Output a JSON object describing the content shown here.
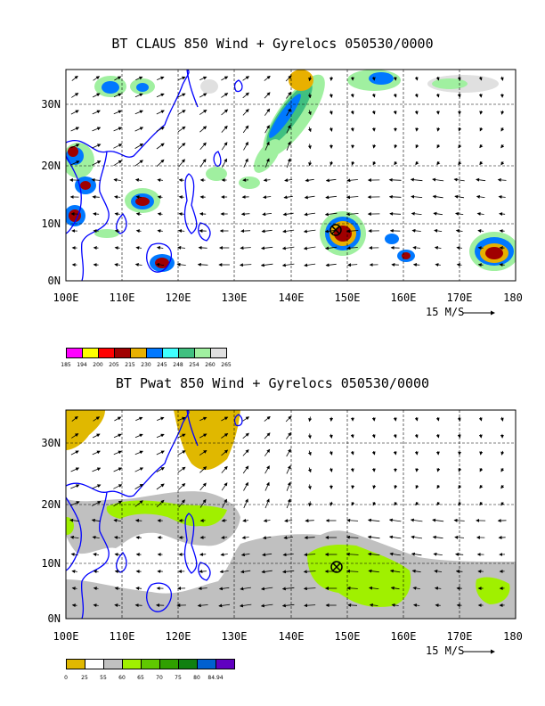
{
  "panels": [
    {
      "title": "BT CLAUS 850 Wind + Gyrelocs 050530/0000",
      "scale_label": "15 M/S",
      "colorbar": {
        "colors": [
          "#ff00ff",
          "#ffff00",
          "#ff0000",
          "#a00000",
          "#e8b000",
          "#0078ff",
          "#40ffff",
          "#40c080",
          "#a0f0a0",
          "#e0e0e0"
        ],
        "labels": [
          "185",
          "194",
          "200",
          "205",
          "215",
          "230",
          "245",
          "248",
          "254",
          "260",
          "265"
        ]
      }
    },
    {
      "title": "BT Pwat 850 Wind + Gyrelocs 050530/0000",
      "scale_label": "15 M/S",
      "colorbar": {
        "colors": [
          "#e0b800",
          "#ffffff",
          "#c0c0c0",
          "#a0f000",
          "#60c800",
          "#30a000",
          "#108010",
          "#0060d0",
          "#6000c0"
        ],
        "labels": [
          "0",
          "25",
          "55",
          "60",
          "65",
          "70",
          "75",
          "80",
          "84.94"
        ]
      }
    }
  ],
  "axes": {
    "x_ticks": [
      "100E",
      "110E",
      "120E",
      "130E",
      "140E",
      "150E",
      "160E",
      "170E",
      "180"
    ],
    "y_ticks": [
      "0N",
      "10N",
      "20N",
      "30N"
    ]
  },
  "gyre_location": {
    "lon": 148,
    "lat": 9
  }
}
